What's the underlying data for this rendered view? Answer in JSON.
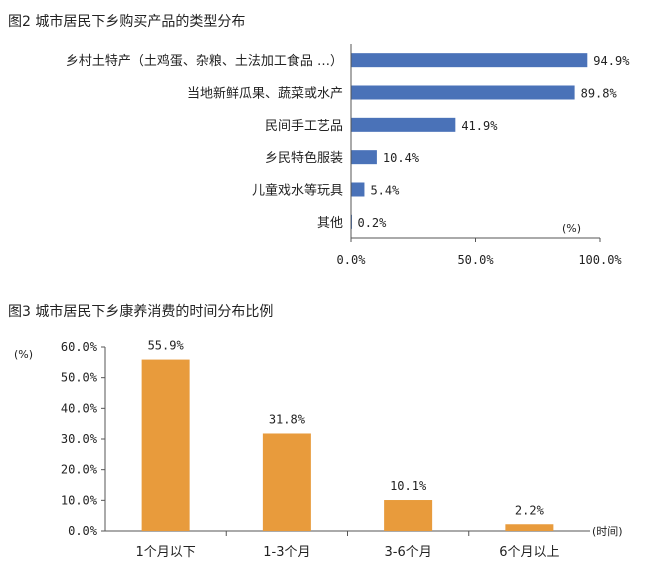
{
  "chart_data": [
    {
      "type": "bar",
      "orientation": "horizontal",
      "title": "图2   城市居民下乡购买产品的类型分布",
      "categories": [
        "乡村土特产（土鸡蛋、杂粮、土法加工食品 …）",
        "当地新鲜瓜果、蔬菜或水产",
        "民间手工艺品",
        "乡民特色服装",
        "儿童戏水等玩具",
        "其他"
      ],
      "values": [
        94.9,
        89.8,
        41.9,
        10.4,
        5.4,
        0.2
      ],
      "value_labels": [
        "94.9%",
        "89.8%",
        "41.9%",
        "10.4%",
        "5.4%",
        "0.2%"
      ],
      "unit_label": "(%)",
      "xlim": [
        0,
        100
      ],
      "xticks": [
        "0.0%",
        "50.0%",
        "100.0%"
      ],
      "bar_color": "#4a72b8",
      "grid": false
    },
    {
      "type": "bar",
      "orientation": "vertical",
      "title": "图3   城市居民下乡康养消费的时间分布比例",
      "categories": [
        "1个月以下",
        "1-3个月",
        "3-6个月",
        "6个月以上"
      ],
      "values": [
        55.9,
        31.8,
        10.1,
        2.2
      ],
      "value_labels": [
        "55.9%",
        "31.8%",
        "10.1%",
        "2.2%"
      ],
      "ylabel": "(%)",
      "xlabel": "(时间)",
      "ylim": [
        0,
        60
      ],
      "yticks": [
        "0.0%",
        "10.0%",
        "20.0%",
        "30.0%",
        "40.0%",
        "50.0%",
        "60.0%"
      ],
      "bar_color": "#e89b3c",
      "grid": false
    }
  ]
}
